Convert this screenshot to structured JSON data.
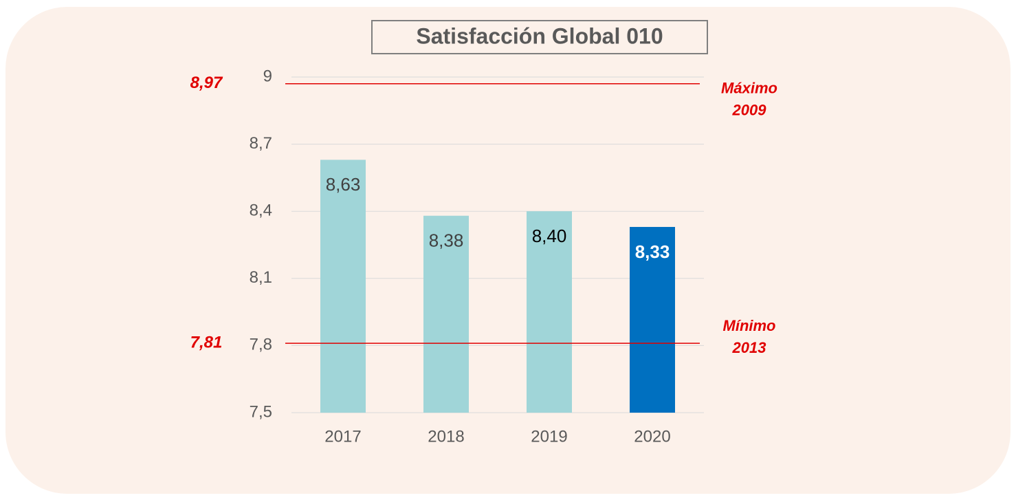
{
  "chart_data": {
    "type": "bar",
    "title": "Satisfacción Global 010",
    "categories": [
      "2017",
      "2018",
      "2019",
      "2020"
    ],
    "values": [
      8.63,
      8.38,
      8.4,
      8.33
    ],
    "value_labels": [
      "8,63",
      "8,38",
      "8,40",
      "8,33"
    ],
    "colors": [
      "#a0d5d8",
      "#a0d5d8",
      "#a0d5d8",
      "#0070c0"
    ],
    "label_colors": [
      "#404040",
      "#404040",
      "#000000",
      "#ffffff"
    ],
    "ylim": [
      7.5,
      9
    ],
    "yticks": [
      {
        "value": 7.5,
        "label": "7,5"
      },
      {
        "value": 7.8,
        "label": "7,8"
      },
      {
        "value": 8.1,
        "label": "8,1"
      },
      {
        "value": 8.4,
        "label": "8,4"
      },
      {
        "value": 8.7,
        "label": "8,7"
      },
      9
    ],
    "grid": true,
    "reference_lines": [
      {
        "value": 8.97,
        "label": "8,97",
        "annotation": [
          "Máximo",
          "2009"
        ],
        "color": "#e00000"
      },
      {
        "value": 7.81,
        "label": "7,81",
        "annotation": [
          "Mínimo",
          "2013"
        ],
        "color": "#e00000"
      }
    ]
  }
}
